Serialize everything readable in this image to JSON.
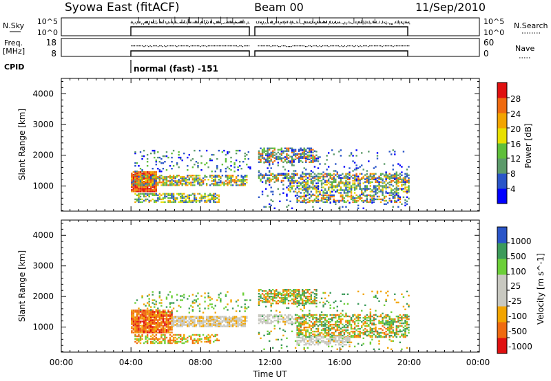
{
  "header": {
    "station": "Syowa East (fitACF)",
    "beam": "Beam 00",
    "date": "11/Sep/2010"
  },
  "aux_panels": {
    "nsky_label": "N.Sky",
    "nsky_ticks": [
      "10^5",
      "10^0"
    ],
    "nsearch_label": "N.Search",
    "nsearch_ticks": [
      "10^5",
      "10^0"
    ],
    "freq_label_1": "Freq.",
    "freq_label_2": "[MHz]",
    "freq_ticks": [
      "18",
      "8"
    ],
    "nave_label": "Nave",
    "nave_ticks": [
      "60",
      "0"
    ],
    "cpid_label": "CPID",
    "cpid_text": "normal (fast) -151"
  },
  "colors": {
    "power_scale": [
      "#0000ff",
      "#2a55c8",
      "#5c9a6a",
      "#5fbf3a",
      "#e8e000",
      "#f2a400",
      "#ef6a10",
      "#e01010"
    ],
    "velocity_scale": [
      "#e01010",
      "#ef6a10",
      "#f2a400",
      "#c8c8c0",
      "#c8c8c0",
      "#6ccf38",
      "#3c9a5a",
      "#2a55c8"
    ]
  },
  "chart_data": {
    "type": "heatmap",
    "x_label": "Time UT",
    "x_ticks": [
      "00:00",
      "04:00",
      "08:00",
      "12:00",
      "16:00",
      "20:00",
      "00:00"
    ],
    "xlim_hours": [
      0,
      24
    ],
    "data_gap_hours": [
      10.8,
      11.2
    ],
    "panels": [
      {
        "name": "power",
        "ylabel": "Slant Range [km]",
        "yticks": [
          "1000",
          "2000",
          "3000",
          "4000"
        ],
        "ylim": [
          180,
          4500
        ],
        "colorbar_label": "Power [dB]",
        "colorbar_ticks": [
          "4",
          "8",
          "12",
          "16",
          "20",
          "24",
          "28"
        ],
        "colorbar_range": [
          0,
          30
        ]
      },
      {
        "name": "velocity",
        "ylabel": "Slant Range [km]",
        "yticks": [
          "1000",
          "2000",
          "3000",
          "4000"
        ],
        "ylim": [
          180,
          4500
        ],
        "colorbar_label": "Velocity [m s^-1]",
        "colorbar_ticks": [
          "-1000",
          "-500",
          "-100",
          "-25",
          "25",
          "100",
          "500",
          "1000"
        ]
      }
    ]
  }
}
